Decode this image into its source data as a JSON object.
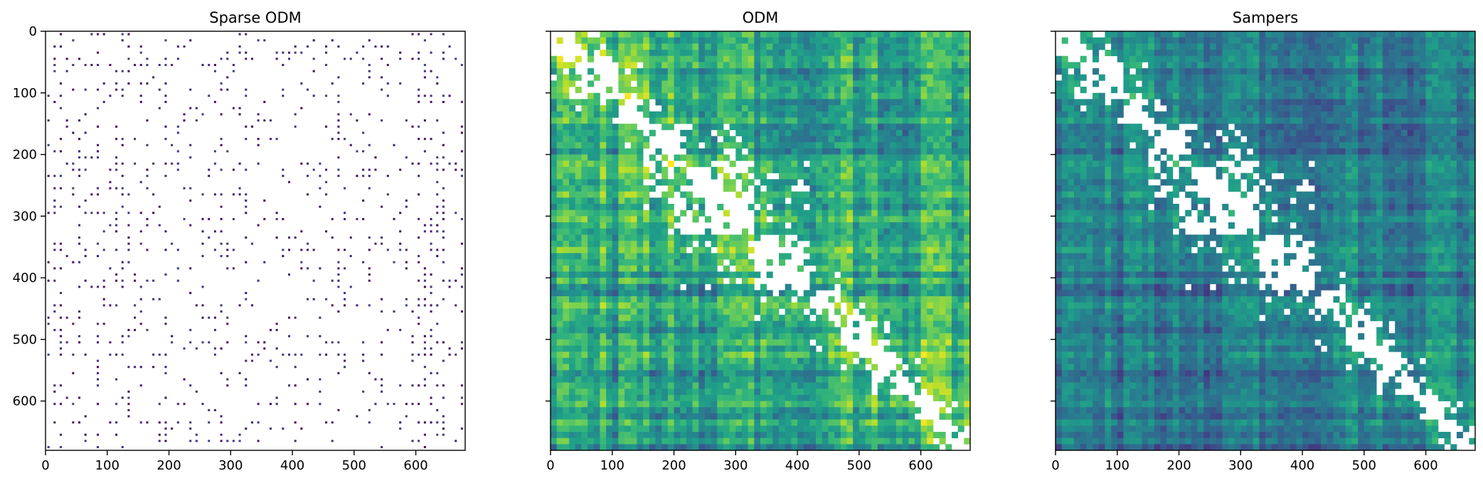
{
  "chart_data": [
    {
      "type": "heatmap",
      "title": "Sparse ODM",
      "xlim": [
        0,
        680
      ],
      "ylim": [
        680,
        0
      ],
      "xticks": [
        0,
        100,
        200,
        300,
        400,
        500,
        600
      ],
      "yticks": [
        0,
        100,
        200,
        300,
        400,
        500,
        600
      ],
      "y_tick_labels_shown": true,
      "colormap": "viridis",
      "sparse": true,
      "matrix_size": 680
    },
    {
      "type": "heatmap",
      "title": "ODM",
      "xlim": [
        0,
        680
      ],
      "ylim": [
        680,
        0
      ],
      "xticks": [
        0,
        100,
        200,
        300,
        400,
        500,
        600
      ],
      "yticks": [
        0,
        100,
        200,
        300,
        400,
        500,
        600
      ],
      "y_tick_labels_shown": false,
      "colormap": "viridis",
      "sparse": false,
      "matrix_size": 680
    },
    {
      "type": "heatmap",
      "title": "Sampers",
      "xlim": [
        0,
        680
      ],
      "ylim": [
        680,
        0
      ],
      "xticks": [
        0,
        100,
        200,
        300,
        400,
        500,
        600
      ],
      "yticks": [
        0,
        100,
        200,
        300,
        400,
        500,
        600
      ],
      "y_tick_labels_shown": false,
      "colormap": "viridis",
      "sparse": false,
      "matrix_size": 680
    }
  ],
  "colors": {
    "missing": "#ffffff",
    "viridis_dark": "#440154",
    "viridis_mid": "#21918c",
    "viridis_light": "#fde725"
  }
}
